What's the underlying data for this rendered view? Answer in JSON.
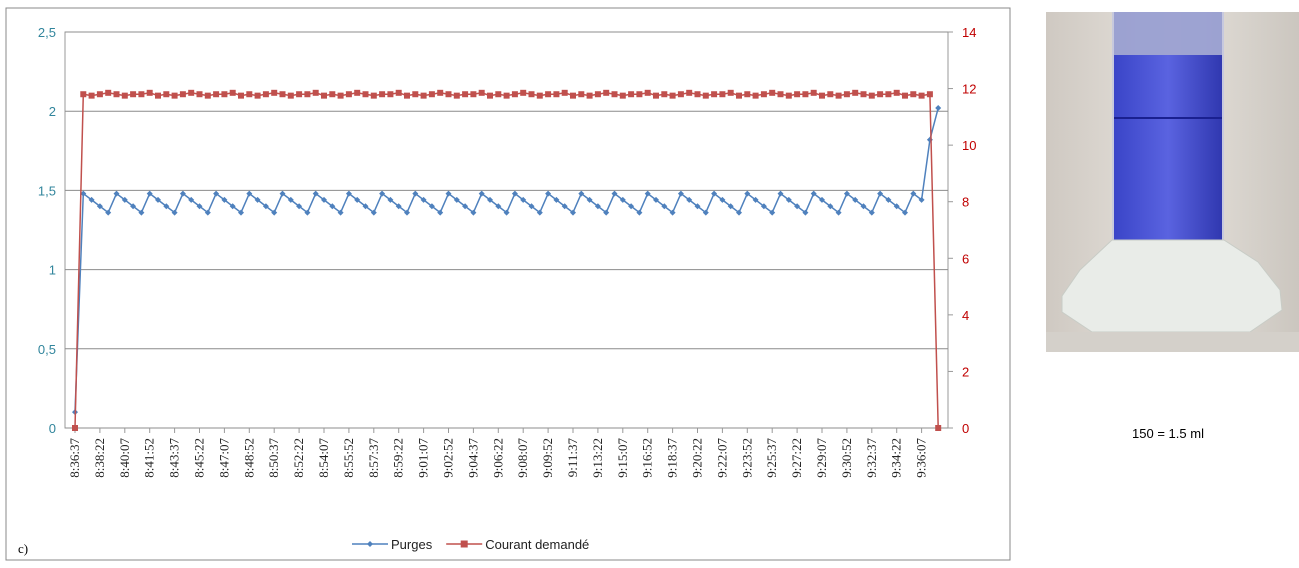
{
  "chart_data": {
    "type": "line",
    "categories": [
      "8:36:37",
      null,
      null,
      "8:38:22",
      null,
      null,
      "8:40:07",
      null,
      null,
      "8:41:52",
      null,
      null,
      "8:43:37",
      null,
      null,
      "8:45:22",
      null,
      null,
      "8:47:07",
      null,
      null,
      "8:48:52",
      null,
      null,
      "8:50:37",
      null,
      null,
      "8:52:22",
      null,
      null,
      "8:54:07",
      null,
      null,
      "8:55:52",
      null,
      null,
      "8:57:37",
      null,
      null,
      "8:59:22",
      null,
      null,
      "9:01:07",
      null,
      null,
      "9:02:52",
      null,
      null,
      "9:04:37",
      null,
      null,
      "9:06:22",
      null,
      null,
      "9:08:07",
      null,
      null,
      "9:09:52",
      null,
      null,
      "9:11:37",
      null,
      null,
      "9:13:22",
      null,
      null,
      "9:15:07",
      null,
      null,
      "9:16:52",
      null,
      null,
      "9:18:37",
      null,
      null,
      "9:20:22",
      null,
      null,
      "9:22:07",
      null,
      null,
      "9:23:52",
      null,
      null,
      "9:25:37",
      null,
      null,
      "9:27:22",
      null,
      null,
      "9:29:07",
      null,
      null,
      "9:30:52",
      null,
      null,
      "9:32:37",
      null,
      null,
      "9:34:22",
      null,
      null,
      "9:36:07",
      null,
      null
    ],
    "series": [
      {
        "name": "Purges",
        "color": "#4f81bd",
        "marker": "diamond",
        "values": [
          0.1,
          1.48,
          1.44,
          1.4,
          1.36,
          1.48,
          1.44,
          1.4,
          1.36,
          1.48,
          1.44,
          1.4,
          1.36,
          1.48,
          1.44,
          1.4,
          1.36,
          1.48,
          1.44,
          1.4,
          1.36,
          1.48,
          1.44,
          1.4,
          1.36,
          1.48,
          1.44,
          1.4,
          1.36,
          1.48,
          1.44,
          1.4,
          1.36,
          1.48,
          1.44,
          1.4,
          1.36,
          1.48,
          1.44,
          1.4,
          1.36,
          1.48,
          1.44,
          1.4,
          1.36,
          1.48,
          1.44,
          1.4,
          1.36,
          1.48,
          1.44,
          1.4,
          1.36,
          1.48,
          1.44,
          1.4,
          1.36,
          1.48,
          1.44,
          1.4,
          1.36,
          1.48,
          1.44,
          1.4,
          1.36,
          1.48,
          1.44,
          1.4,
          1.36,
          1.48,
          1.44,
          1.4,
          1.36,
          1.48,
          1.44,
          1.4,
          1.36,
          1.48,
          1.44,
          1.4,
          1.36,
          1.48,
          1.44,
          1.4,
          1.36,
          1.48,
          1.44,
          1.4,
          1.36,
          1.48,
          1.44,
          1.4,
          1.36,
          1.48,
          1.44,
          1.4,
          1.36,
          1.48,
          1.44,
          1.4,
          1.36,
          1.48,
          1.44,
          1.82,
          2.02
        ]
      },
      {
        "name": "Courant demandé",
        "color": "#c0504d",
        "marker": "square",
        "axis": "y2",
        "values": [
          0,
          11.8,
          11.75,
          11.8,
          11.85,
          11.8,
          11.75,
          11.8,
          11.8,
          11.85,
          11.75,
          11.8,
          11.75,
          11.8,
          11.85,
          11.8,
          11.75,
          11.8,
          11.8,
          11.85,
          11.75,
          11.8,
          11.75,
          11.8,
          11.85,
          11.8,
          11.75,
          11.8,
          11.8,
          11.85,
          11.75,
          11.8,
          11.75,
          11.8,
          11.85,
          11.8,
          11.75,
          11.8,
          11.8,
          11.85,
          11.75,
          11.8,
          11.75,
          11.8,
          11.85,
          11.8,
          11.75,
          11.8,
          11.8,
          11.85,
          11.75,
          11.8,
          11.75,
          11.8,
          11.85,
          11.8,
          11.75,
          11.8,
          11.8,
          11.85,
          11.75,
          11.8,
          11.75,
          11.8,
          11.85,
          11.8,
          11.75,
          11.8,
          11.8,
          11.85,
          11.75,
          11.8,
          11.75,
          11.8,
          11.85,
          11.8,
          11.75,
          11.8,
          11.8,
          11.85,
          11.75,
          11.8,
          11.75,
          11.8,
          11.85,
          11.8,
          11.75,
          11.8,
          11.8,
          11.85,
          11.75,
          11.8,
          11.75,
          11.8,
          11.85,
          11.8,
          11.75,
          11.8,
          11.8,
          11.85,
          11.75,
          11.8,
          11.75,
          11.8,
          0
        ]
      }
    ],
    "ylim": [
      0,
      2.5
    ],
    "yticks": [
      0,
      {
        "value": 0.5,
        "label": "0,5"
      },
      1,
      {
        "value": 1.5,
        "label": "1,5"
      },
      2,
      {
        "value": 2.5,
        "label": "2,5"
      }
    ],
    "y2lim": [
      0,
      14
    ],
    "y2ticks": [
      0,
      2,
      4,
      6,
      8,
      10,
      12,
      14
    ],
    "y_tick_color": "#31859c",
    "y2_tick_color": "#c00000",
    "grid": true,
    "legend": "bottom"
  },
  "panel_label": "c)",
  "photo_caption": "150 = 1.5 ml"
}
